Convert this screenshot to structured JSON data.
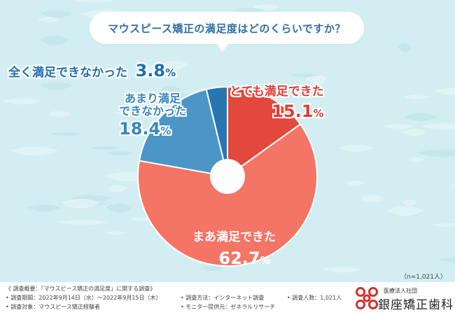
{
  "title": "マウスピース矯正の満足度はどのくらいですか？",
  "chart_data": {
    "type": "pie",
    "title": "マウスピース矯正の満足度はどのくらいですか？",
    "categories": [
      "とても満足できた",
      "まあ満足できた",
      "あまり満足できなかった",
      "全く満足できなかった"
    ],
    "values": [
      15.1,
      62.7,
      18.4,
      3.8
    ],
    "colors": [
      "#e2493c",
      "#f47466",
      "#4b95c7",
      "#2776b2"
    ]
  },
  "labels": {
    "very_satisfied": {
      "text": "とても満足できた",
      "num": "15.1",
      "unit": "%"
    },
    "somewhat_satisfied": {
      "text": "まあ満足できた",
      "num": "62.7",
      "unit": "%"
    },
    "not_very": {
      "line1": "あまり満足",
      "line2": "できなかった",
      "num": "18.4",
      "unit": "%"
    },
    "not_at_all": {
      "text": "全く満足できなかった",
      "num": "3.8",
      "unit": "%"
    }
  },
  "sample_note": "（n=1,021人）",
  "footer": {
    "summary": "《 調査概要：「マウスピース矯正の満足度」に関する調査》",
    "period": "• 調査期間：2022年9月14日（水）〜2022年9月15日（木）",
    "target": "• 調査対象：マウスピース矯正経験者",
    "method": "• 調査方法：インターネット調査",
    "provider": "• モニター提供元：ゼネラルリサーチ",
    "count": "• 調査人数：1,021人"
  },
  "logo": {
    "small": "医療法人社団",
    "name": "銀座矯正歯科",
    "accent_color": "#d32f2f"
  }
}
